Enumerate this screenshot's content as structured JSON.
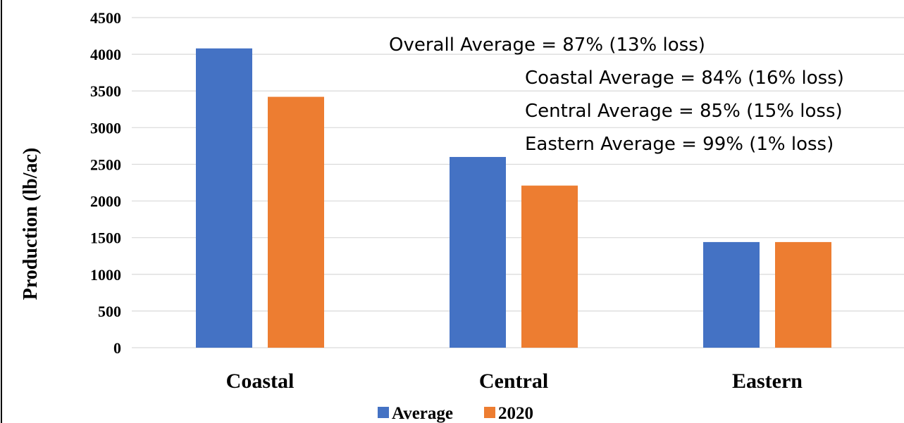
{
  "chart_data": {
    "type": "bar",
    "categories": [
      "Coastal",
      "Central",
      "Eastern"
    ],
    "series": [
      {
        "name": "Average",
        "values": [
          4080,
          2600,
          1440
        ],
        "color": "#4472C4"
      },
      {
        "name": "2020",
        "values": [
          3420,
          2210,
          1440
        ],
        "color": "#ED7D31"
      }
    ],
    "title": "",
    "xlabel": "",
    "ylabel": "Production (lb/ac)",
    "ylim": [
      0,
      4500
    ],
    "yticks": [
      "0",
      "500",
      "1000",
      "1500",
      "2000",
      "2500",
      "3000",
      "3500",
      "4000",
      "4500"
    ],
    "grid": true,
    "legend_position": "bottom",
    "annotations": [
      "Overall Average = 87%  (13% loss)",
      "Coastal Average = 84% (16% loss)",
      "Central Average = 85% (15% loss)",
      "Eastern Average = 99% (1% loss)"
    ]
  }
}
